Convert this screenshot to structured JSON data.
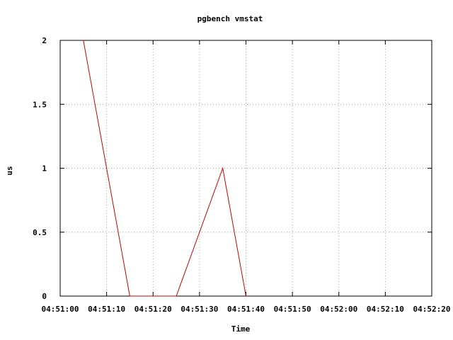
{
  "chart_data": {
    "type": "line",
    "title": "pgbench vmstat",
    "xlabel": "Time",
    "ylabel": "us",
    "x_ticks": [
      "04:51:00",
      "04:51:10",
      "04:51:20",
      "04:51:30",
      "04:51:40",
      "04:51:50",
      "04:52:00",
      "04:52:10",
      "04:52:20"
    ],
    "y_ticks": [
      "0",
      "0.5",
      "1",
      "1.5",
      "2"
    ],
    "xlim": [
      "04:51:00",
      "04:52:20"
    ],
    "ylim": [
      0,
      2
    ],
    "grid": true,
    "colors": {
      "series": "#cc0000",
      "grid": "#a0a0a0",
      "axes": "#000000"
    },
    "series": [
      {
        "x": [
          "04:51:05",
          "04:51:15",
          "04:51:25",
          "04:51:35",
          "04:51:40"
        ],
        "y": [
          2,
          0,
          0,
          1,
          0
        ]
      }
    ]
  }
}
